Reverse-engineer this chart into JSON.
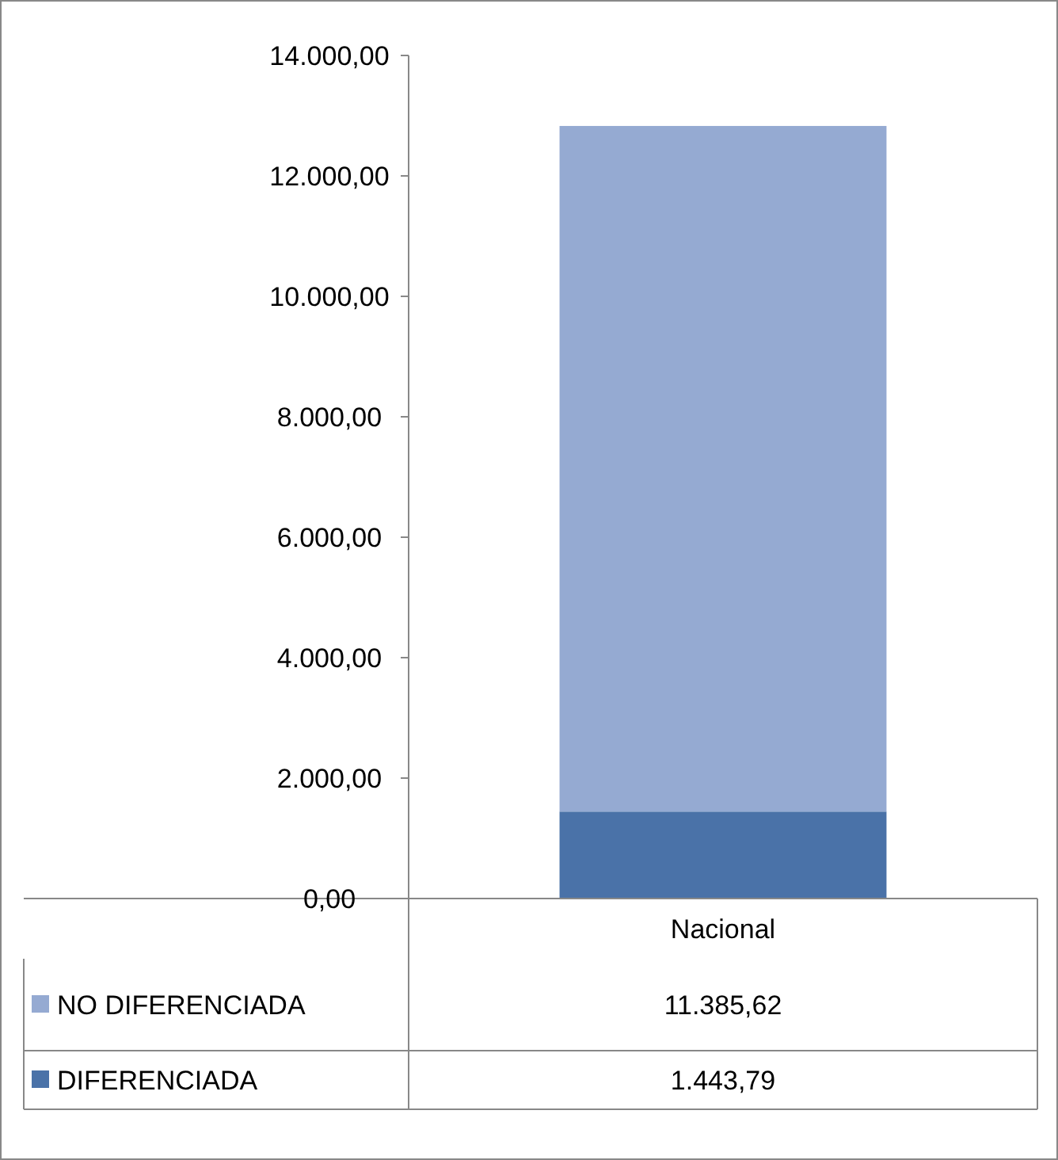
{
  "chart_data": {
    "type": "bar",
    "stacked": true,
    "categories": [
      "Nacional"
    ],
    "series": [
      {
        "name": "DIFERENCIADA",
        "color": "#4a72a8",
        "values": [
          1443.79
        ]
      },
      {
        "name": "NO DIFERENCIADA",
        "color": "#95aad2",
        "values": [
          11385.62
        ]
      }
    ],
    "ylim": [
      0,
      14000
    ],
    "yticks": [
      {
        "value": 0,
        "label": "0,00"
      },
      {
        "value": 2000,
        "label": "2.000,00"
      },
      {
        "value": 4000,
        "label": "4.000,00"
      },
      {
        "value": 6000,
        "label": "6.000,00"
      },
      {
        "value": 8000,
        "label": "8.000,00"
      },
      {
        "value": 10000,
        "label": "10.000,00"
      },
      {
        "value": 12000,
        "label": "12.000,00"
      },
      {
        "value": 14000,
        "label": "14.000,00"
      }
    ],
    "value_labels": [
      [
        "1.443,79"
      ],
      [
        "11.385,62"
      ]
    ],
    "legend": "bottom",
    "grid": false
  }
}
